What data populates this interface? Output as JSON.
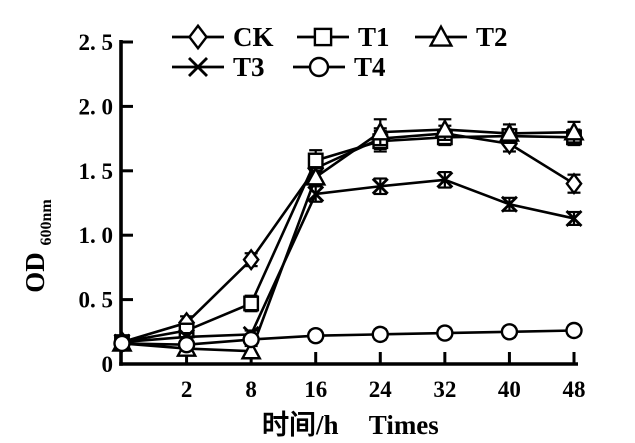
{
  "chart_data": {
    "type": "line",
    "title": "",
    "xlabel_zh": "时间/h",
    "xlabel_en": "Times",
    "ylabel": "OD",
    "ylabel_subscript": "600nm",
    "x": [
      0,
      2,
      8,
      16,
      24,
      32,
      40,
      48
    ],
    "x_spacing": "equal-interval category positions, first point on y-axis",
    "x_tick_labels": [
      "2",
      "8",
      "16",
      "24",
      "32",
      "40",
      "48"
    ],
    "y_tick_values": [
      0,
      0.5,
      1,
      1.5,
      2,
      2.5
    ],
    "y_tick_labels": [
      "0",
      "0. 5",
      "1. 0",
      "1. 5",
      "2. 0",
      "2. 5"
    ],
    "ylim": [
      0,
      2.5
    ],
    "grid": false,
    "legend_position": "top",
    "legend_rows": [
      [
        "CK",
        "T1",
        "T2"
      ],
      [
        "T3",
        "T4"
      ]
    ],
    "series": [
      {
        "name": "CK",
        "marker": "diamond",
        "values": [
          0.17,
          0.32,
          0.81,
          1.52,
          1.75,
          1.79,
          1.71,
          1.4
        ],
        "errors": [
          0.03,
          0.05,
          0.05,
          0.09,
          0.08,
          0.06,
          0.06,
          0.07
        ]
      },
      {
        "name": "T1",
        "marker": "square",
        "values": [
          0.17,
          0.26,
          0.47,
          1.58,
          1.73,
          1.76,
          1.77,
          1.76
        ],
        "errors": [
          0.03,
          0.04,
          0.06,
          0.08,
          0.08,
          0.06,
          0.05,
          0.06
        ]
      },
      {
        "name": "T2",
        "marker": "triangle",
        "values": [
          0.16,
          0.12,
          0.1,
          1.45,
          1.8,
          1.82,
          1.79,
          1.8
        ],
        "errors": [
          0.03,
          0.03,
          0.04,
          0.07,
          0.1,
          0.08,
          0.07,
          0.08
        ]
      },
      {
        "name": "T3",
        "marker": "x",
        "values": [
          0.17,
          0.21,
          0.23,
          1.32,
          1.38,
          1.43,
          1.24,
          1.13
        ],
        "errors": [
          0.03,
          0.03,
          0.03,
          0.06,
          0.06,
          0.06,
          0.05,
          0.05
        ]
      },
      {
        "name": "T4",
        "marker": "circle",
        "values": [
          0.16,
          0.15,
          0.19,
          0.22,
          0.23,
          0.24,
          0.25,
          0.26
        ],
        "errors": [
          0.02,
          0.02,
          0.03,
          0.04,
          0.04,
          0.04,
          0.04,
          0.04
        ]
      }
    ],
    "colors": {
      "ink": "#000000",
      "background": "#ffffff"
    }
  }
}
